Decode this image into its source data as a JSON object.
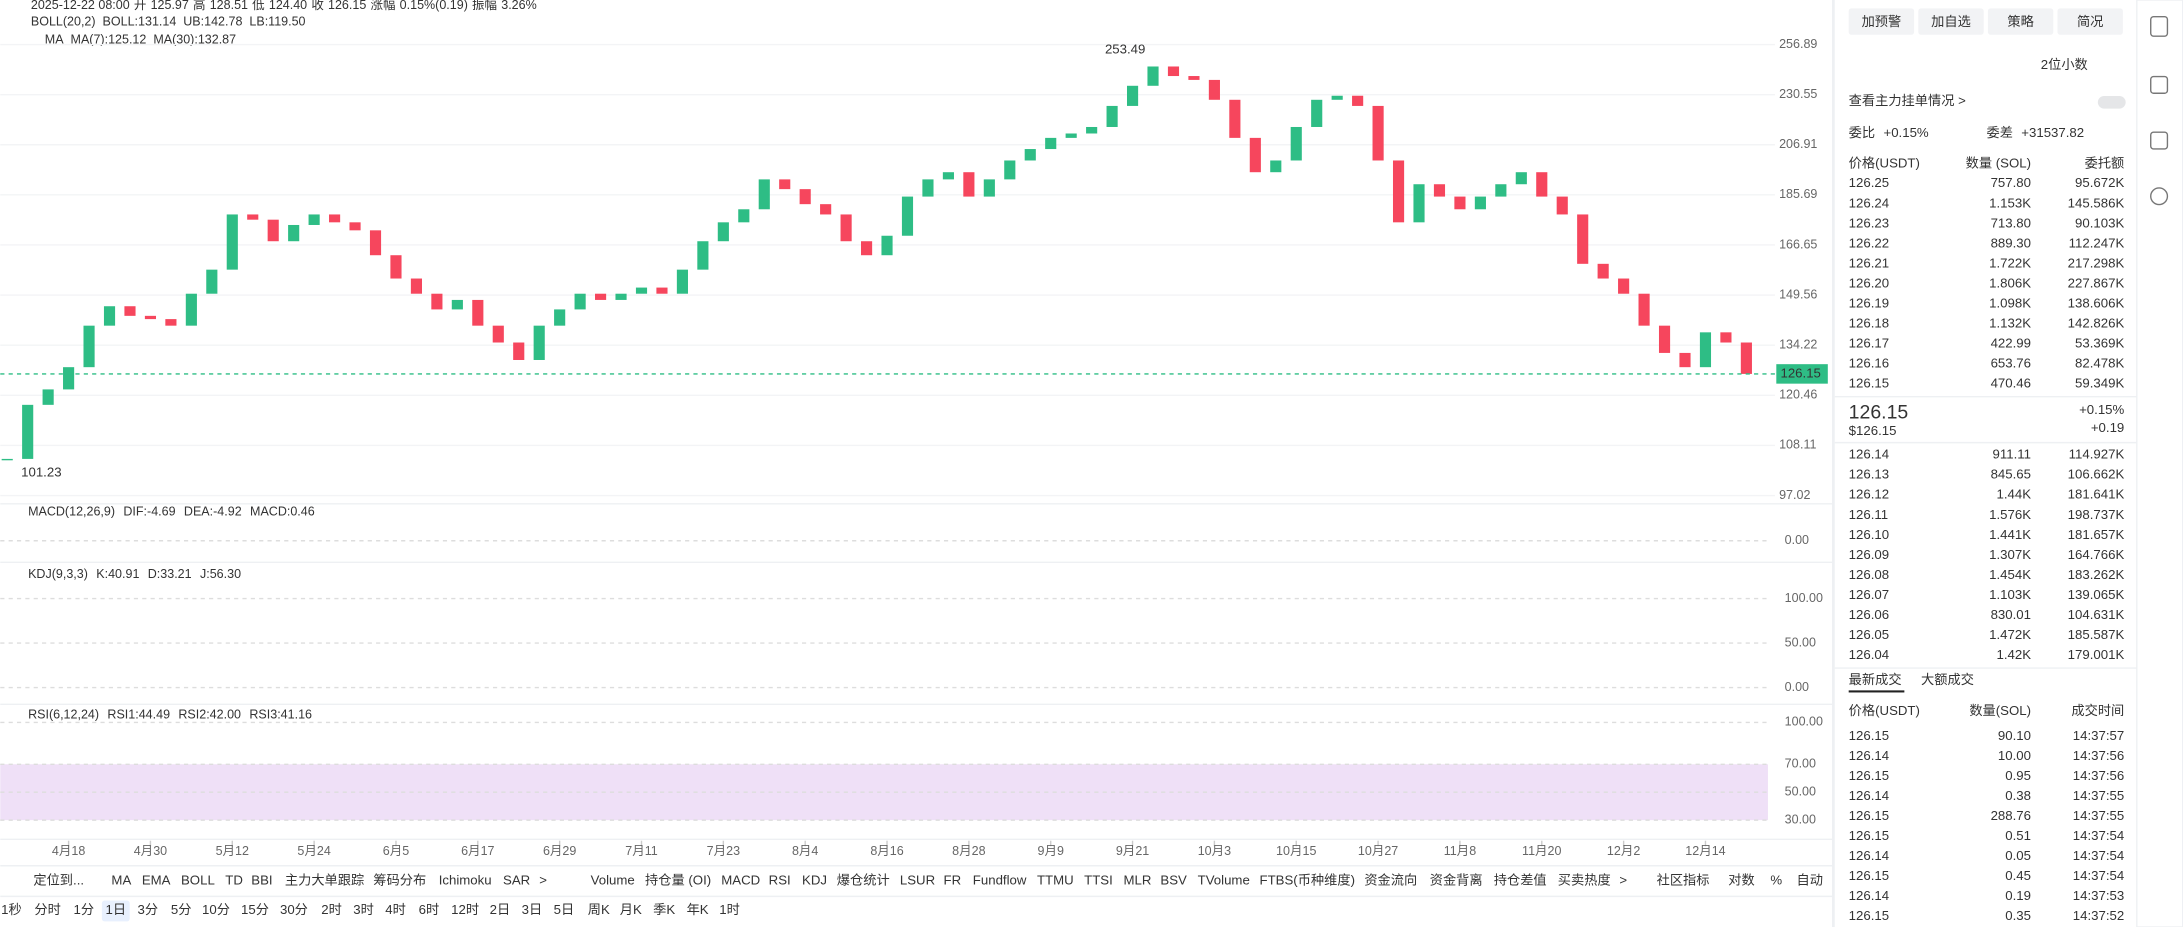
{
  "header": {
    "date": "2025-12-22 08:00",
    "fields": [
      {
        "label": "开",
        "value": "125.97"
      },
      {
        "label": "高",
        "value": "128.51"
      },
      {
        "label": "低",
        "value": "124.40"
      },
      {
        "label": "收",
        "value": "126.15"
      },
      {
        "label": "涨幅",
        "value": "0.15%(0.19)"
      },
      {
        "label": "振幅",
        "value": "3.26%"
      }
    ],
    "boll": [
      "BOLL(20,2)",
      "BOLL:131.14",
      "UB:142.78",
      "LB:119.50"
    ],
    "ma": [
      "MA",
      "MA(7):125.12",
      "MA(30):132.87"
    ]
  },
  "chart_data": {
    "type": "candlestick",
    "log_scale": true,
    "x": [
      0,
      3,
      6,
      9,
      12,
      15,
      18,
      21,
      24,
      27,
      30,
      33,
      36,
      39,
      42,
      45,
      48,
      51,
      54,
      57,
      60,
      63,
      66,
      69,
      72,
      75,
      78,
      81,
      84,
      87,
      90,
      93,
      96,
      99,
      102,
      105,
      108,
      111,
      114,
      117,
      120,
      123,
      126,
      129,
      132,
      135,
      138,
      141,
      144,
      147,
      150,
      153,
      156,
      159,
      162,
      165,
      168,
      171,
      174,
      177,
      180,
      183,
      186,
      189,
      192,
      195,
      198,
      201,
      204,
      207,
      210,
      213,
      216,
      219,
      222,
      225,
      228,
      231,
      234,
      237,
      240,
      243,
      246,
      249,
      252,
      255
    ],
    "values": [
      105,
      118,
      122,
      128,
      140,
      146,
      143,
      142,
      140,
      150,
      158,
      178,
      176,
      168,
      174,
      178,
      175,
      172,
      163,
      155,
      150,
      145,
      148,
      140,
      135,
      130,
      140,
      145,
      150,
      148,
      150,
      152,
      150,
      158,
      168,
      175,
      180,
      192,
      188,
      182,
      178,
      168,
      163,
      170,
      185,
      192,
      195,
      185,
      192,
      200,
      205,
      210,
      212,
      215,
      225,
      235,
      245,
      240,
      238,
      228,
      210,
      195,
      200,
      215,
      228,
      230,
      225,
      200,
      175,
      190,
      185,
      180,
      185,
      190,
      195,
      185,
      178,
      160,
      155,
      150,
      140,
      132,
      128,
      138,
      135,
      126.15
    ],
    "ylim": [
      97.02,
      256.89
    ],
    "yticks": [
      256.89,
      230.55,
      206.91,
      185.69,
      166.65,
      149.56,
      134.22,
      120.46,
      108.11,
      97.02
    ],
    "xticks": [
      {
        "value": 9,
        "label": "4月18"
      },
      {
        "value": 21,
        "label": "4月30"
      },
      {
        "value": 33,
        "label": "5月12"
      },
      {
        "value": 45,
        "label": "5月24"
      },
      {
        "value": 57,
        "label": "6月5"
      },
      {
        "value": 69,
        "label": "6月17"
      },
      {
        "value": 81,
        "label": "6月29"
      },
      {
        "value": 93,
        "label": "7月11"
      },
      {
        "value": 105,
        "label": "7月23"
      },
      {
        "value": 117,
        "label": "8月4"
      },
      {
        "value": 129,
        "label": "8月16"
      },
      {
        "value": 141,
        "label": "8月28"
      },
      {
        "value": 153,
        "label": "9月9"
      },
      {
        "value": 165,
        "label": "9月21"
      },
      {
        "value": 177,
        "label": "10月3"
      },
      {
        "value": 189,
        "label": "10月15"
      },
      {
        "value": 201,
        "label": "10月27"
      },
      {
        "value": 213,
        "label": "11月8"
      },
      {
        "value": 225,
        "label": "11月20"
      },
      {
        "value": 237,
        "label": "12月2"
      },
      {
        "value": 249,
        "label": "12月14"
      }
    ],
    "annotations": [
      "253.49",
      "101.23"
    ],
    "last_price": 126.15,
    "up_color": "#2ebd85",
    "down_color": "#f6465d"
  },
  "macd": {
    "labels": [
      "MACD(12,26,9)",
      "DIF:-4.69",
      "DEA:-4.92",
      "MACD:0.46"
    ],
    "yticks": [
      {
        "value": 0,
        "label": "0.00"
      }
    ]
  },
  "kdj": {
    "labels": [
      "KDJ(9,3,3)",
      "K:40.91",
      "D:33.21",
      "J:56.30"
    ],
    "ylim": [
      0,
      100
    ],
    "yticks": [
      {
        "value": 100,
        "label": "100.00"
      },
      {
        "value": 50,
        "label": "50.00"
      },
      {
        "value": 0,
        "label": "0.00"
      }
    ]
  },
  "rsi": {
    "labels": [
      "RSI(6,12,24)",
      "RSI1:44.49",
      "RSI2:42.00",
      "RSI3:41.16"
    ],
    "ylim": [
      20,
      100
    ],
    "yticks": [
      {
        "value": 100,
        "label": "100.00"
      },
      {
        "value": 70,
        "label": "70.00"
      },
      {
        "value": 50,
        "label": "50.00"
      },
      {
        "value": 30,
        "label": "30.00"
      }
    ]
  },
  "toolbar": [
    {
      "text": "定位到..."
    },
    {
      "text": "MA",
      "active": true
    },
    {
      "text": "EMA"
    },
    {
      "text": "BOLL",
      "active": true
    },
    {
      "text": "TD"
    },
    {
      "text": "BBI"
    },
    {
      "text": "主力大单跟踪"
    },
    {
      "text": "筹码分布"
    },
    {
      "text": "Ichimoku"
    },
    {
      "text": "SAR"
    },
    {
      "text": ">"
    },
    {
      "text": "Volume"
    },
    {
      "text": "持仓量 (OI)"
    },
    {
      "text": "MACD",
      "active": true
    },
    {
      "text": "RSI",
      "active": true
    },
    {
      "text": "KDJ",
      "active": true
    },
    {
      "text": "爆仓统计"
    },
    {
      "text": "LSUR"
    },
    {
      "text": "FR"
    },
    {
      "text": "Fundflow"
    },
    {
      "text": "TTMU"
    },
    {
      "text": "TTSI"
    },
    {
      "text": "MLR"
    },
    {
      "text": "BSV"
    },
    {
      "text": "TVolume"
    },
    {
      "text": "FTBS(币种维度)"
    },
    {
      "text": "资金流向"
    },
    {
      "text": "资金背离"
    },
    {
      "text": "持仓差值"
    },
    {
      "text": "买卖热度"
    },
    {
      "text": ">"
    },
    {
      "text": "社区指标"
    },
    {
      "text": "对数",
      "active": true
    },
    {
      "text": "%"
    },
    {
      "text": "自动",
      "active": true
    }
  ],
  "timeframes": [
    {
      "text": "1秒"
    },
    {
      "text": "分时"
    },
    {
      "text": "1分"
    },
    {
      "text": "1日",
      "active": true
    },
    {
      "text": "3分"
    },
    {
      "text": "5分"
    },
    {
      "text": "10分"
    },
    {
      "text": "15分"
    },
    {
      "text": "30分"
    },
    {
      "text": "2时"
    },
    {
      "text": "3时"
    },
    {
      "text": "4时"
    },
    {
      "text": "6时"
    },
    {
      "text": "12时"
    },
    {
      "text": "2日"
    },
    {
      "text": "3日"
    },
    {
      "text": "5日"
    },
    {
      "text": "周K"
    },
    {
      "text": "月K"
    },
    {
      "text": "季K"
    },
    {
      "text": "年K"
    },
    {
      "text": "1时"
    }
  ],
  "panel": {
    "buttons": [
      "加预警",
      "加自选",
      "策略",
      "简况"
    ],
    "decimals": "2位小数",
    "depth_link": "查看主力挂单情况 >",
    "ratio_label": "委比",
    "ratio": "+0.15%",
    "diff_label": "委差",
    "diff": "+31537.82",
    "columns": [
      "价格(USDT)",
      "数量 (SOL)",
      "委托额"
    ],
    "asks": [
      [
        "126.25",
        "757.80",
        "95.672K"
      ],
      [
        "126.24",
        "1.153K",
        "145.586K"
      ],
      [
        "126.23",
        "713.80",
        "90.103K"
      ],
      [
        "126.22",
        "889.30",
        "112.247K"
      ],
      [
        "126.21",
        "1.722K",
        "217.298K"
      ],
      [
        "126.20",
        "1.806K",
        "227.867K"
      ],
      [
        "126.19",
        "1.098K",
        "138.606K"
      ],
      [
        "126.18",
        "1.132K",
        "142.826K"
      ],
      [
        "126.17",
        "422.99",
        "53.369K"
      ],
      [
        "126.16",
        "653.76",
        "82.478K"
      ],
      [
        "126.15",
        "470.46",
        "59.349K"
      ]
    ],
    "mid": {
      "price": "126.15",
      "usd": "$126.15",
      "pct": "+0.15%",
      "change": "+0.19"
    },
    "bids": [
      [
        "126.14",
        "911.11",
        "114.927K"
      ],
      [
        "126.13",
        "845.65",
        "106.662K"
      ],
      [
        "126.12",
        "1.44K",
        "181.641K"
      ],
      [
        "126.11",
        "1.576K",
        "198.737K"
      ],
      [
        "126.10",
        "1.441K",
        "181.657K"
      ],
      [
        "126.09",
        "1.307K",
        "164.766K"
      ],
      [
        "126.08",
        "1.454K",
        "183.262K"
      ],
      [
        "126.07",
        "1.103K",
        "139.065K"
      ],
      [
        "126.06",
        "830.01",
        "104.631K"
      ],
      [
        "126.05",
        "1.472K",
        "185.587K"
      ],
      [
        "126.04",
        "1.42K",
        "179.001K"
      ]
    ],
    "tabs": [
      "最新成交",
      "大额成交"
    ],
    "trade_columns": [
      "价格(USDT)",
      "数量(SOL)",
      "成交时间"
    ],
    "trades": [
      {
        "row": [
          "126.15",
          "90.10",
          "14:37:57"
        ],
        "side": "buy"
      },
      {
        "row": [
          "126.14",
          "10.00",
          "14:37:56"
        ],
        "side": "sell"
      },
      {
        "row": [
          "126.15",
          "0.95",
          "14:37:56"
        ],
        "side": "buy"
      },
      {
        "row": [
          "126.14",
          "0.38",
          "14:37:55"
        ],
        "side": "sell"
      },
      {
        "row": [
          "126.15",
          "288.76",
          "14:37:55"
        ],
        "side": "buy"
      },
      {
        "row": [
          "126.15",
          "0.51",
          "14:37:54"
        ],
        "side": "buy"
      },
      {
        "row": [
          "126.14",
          "0.05",
          "14:37:54"
        ],
        "side": "sell"
      },
      {
        "row": [
          "126.15",
          "0.45",
          "14:37:54"
        ],
        "side": "buy"
      },
      {
        "row": [
          "126.14",
          "0.19",
          "14:37:53"
        ],
        "side": "sell"
      },
      {
        "row": [
          "126.15",
          "0.35",
          "14:37:52"
        ],
        "side": "buy"
      }
    ]
  }
}
